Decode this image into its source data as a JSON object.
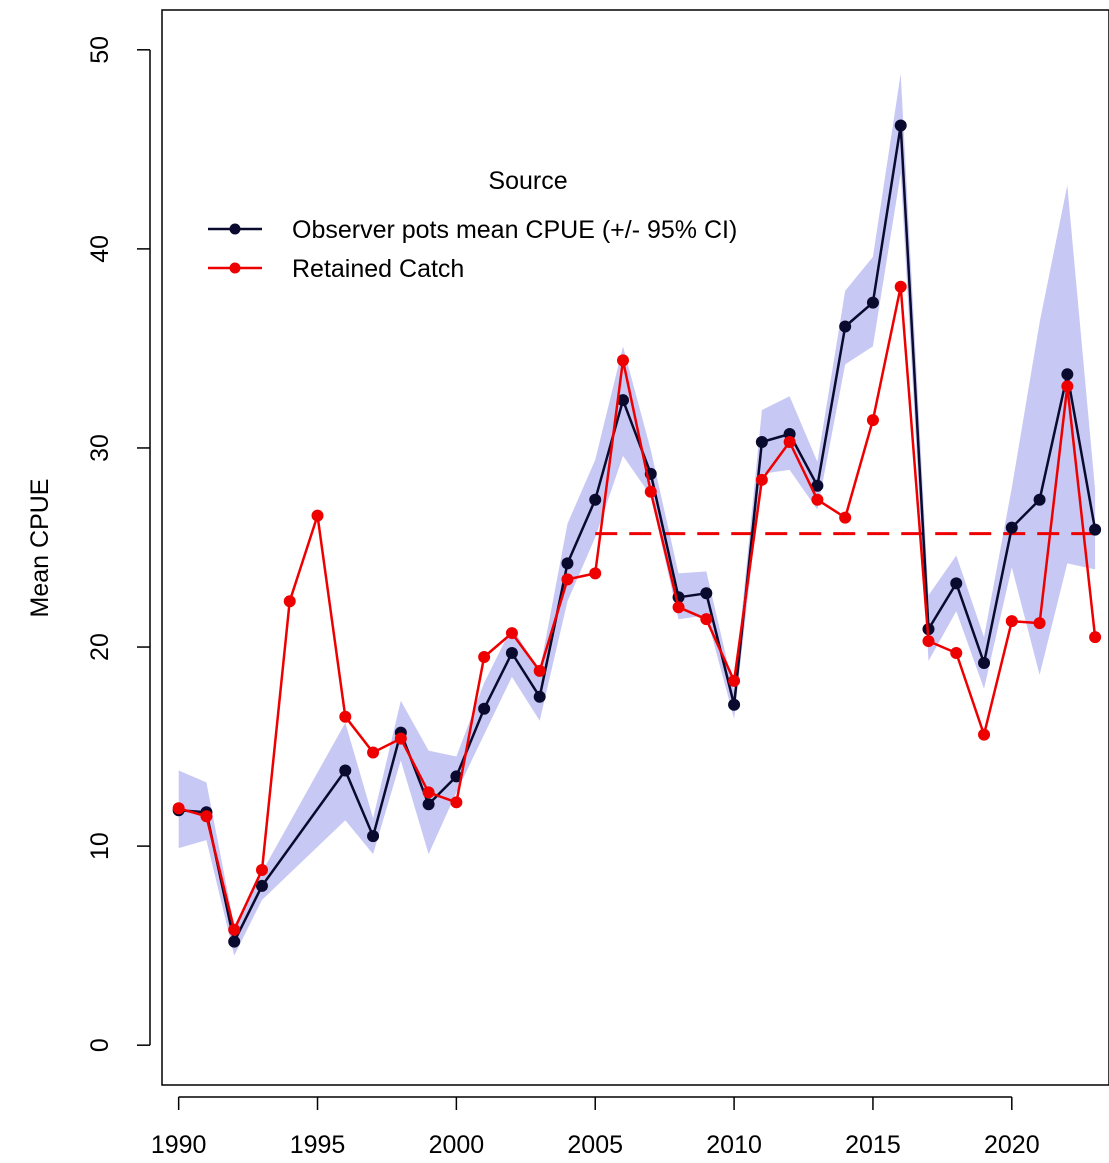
{
  "chart_data": {
    "type": "line",
    "xlabel": "",
    "ylabel": "Mean CPUE",
    "xlim": [
      1989.4,
      2023.5
    ],
    "ylim": [
      -2,
      52
    ],
    "x_ticks": [
      1990,
      1995,
      2000,
      2005,
      2010,
      2015,
      2020
    ],
    "y_ticks": [
      0,
      10,
      20,
      30,
      40,
      50
    ],
    "legend": {
      "title": "Source",
      "placement": "top-center"
    },
    "series": [
      {
        "name": "Observer pots mean CPUE (+/- 95% CI)",
        "color": "#0a0a2e",
        "x": [
          1990,
          1991,
          1992,
          1993,
          1996,
          1997,
          1998,
          1999,
          2000,
          2001,
          2002,
          2003,
          2004,
          2005,
          2006,
          2007,
          2008,
          2009,
          2010,
          2011,
          2012,
          2013,
          2014,
          2015,
          2016,
          2017,
          2018,
          2019,
          2020,
          2021,
          2022,
          2023
        ],
        "values": [
          11.8,
          11.7,
          5.2,
          8.0,
          13.8,
          10.5,
          15.7,
          12.1,
          13.5,
          16.9,
          19.7,
          17.5,
          24.2,
          27.4,
          32.4,
          28.7,
          22.5,
          22.7,
          17.1,
          30.3,
          30.7,
          28.1,
          36.1,
          37.3,
          46.2,
          20.9,
          23.2,
          19.2,
          26.0,
          27.4,
          33.7,
          25.9
        ],
        "ci_lower": [
          9.9,
          10.3,
          4.5,
          7.3,
          11.3,
          9.6,
          14.3,
          9.6,
          12.7,
          15.6,
          18.5,
          16.3,
          22.3,
          25.5,
          29.6,
          27.6,
          21.4,
          21.6,
          16.4,
          28.7,
          28.9,
          26.9,
          34.2,
          35.1,
          43.8,
          19.3,
          21.8,
          17.9,
          24.0,
          18.6,
          24.2,
          23.9
        ],
        "ci_upper": [
          13.8,
          13.2,
          6.0,
          8.7,
          16.2,
          11.4,
          17.3,
          14.8,
          14.5,
          18.2,
          21.0,
          18.8,
          26.2,
          29.4,
          35.1,
          29.9,
          23.7,
          23.8,
          17.8,
          31.9,
          32.6,
          29.3,
          37.9,
          39.6,
          48.8,
          22.6,
          24.6,
          20.5,
          28.0,
          36.3,
          43.2,
          27.9
        ],
        "ci_color": "#c8c8f5"
      },
      {
        "name": "Retained Catch",
        "color": "#ee0000",
        "x": [
          1990,
          1991,
          1992,
          1993,
          1994,
          1995,
          1996,
          1997,
          1998,
          1999,
          2000,
          2001,
          2002,
          2003,
          2004,
          2005,
          2006,
          2007,
          2008,
          2009,
          2010,
          2011,
          2012,
          2013,
          2014,
          2015,
          2016,
          2017,
          2018,
          2019,
          2020,
          2021,
          2022,
          2023
        ],
        "values": [
          11.9,
          11.5,
          5.8,
          8.8,
          22.3,
          26.6,
          16.5,
          14.7,
          15.4,
          12.7,
          12.2,
          19.5,
          20.7,
          18.8,
          23.4,
          23.7,
          34.4,
          27.8,
          22.0,
          21.4,
          18.3,
          28.4,
          30.3,
          27.4,
          26.5,
          31.4,
          38.1,
          20.3,
          19.7,
          15.6,
          21.3,
          21.2,
          33.1,
          20.5
        ]
      }
    ],
    "reference_line": {
      "y": 25.7,
      "x_start": 2005,
      "x_end": 2023,
      "style": "dashed",
      "color": "#ee0000"
    }
  }
}
